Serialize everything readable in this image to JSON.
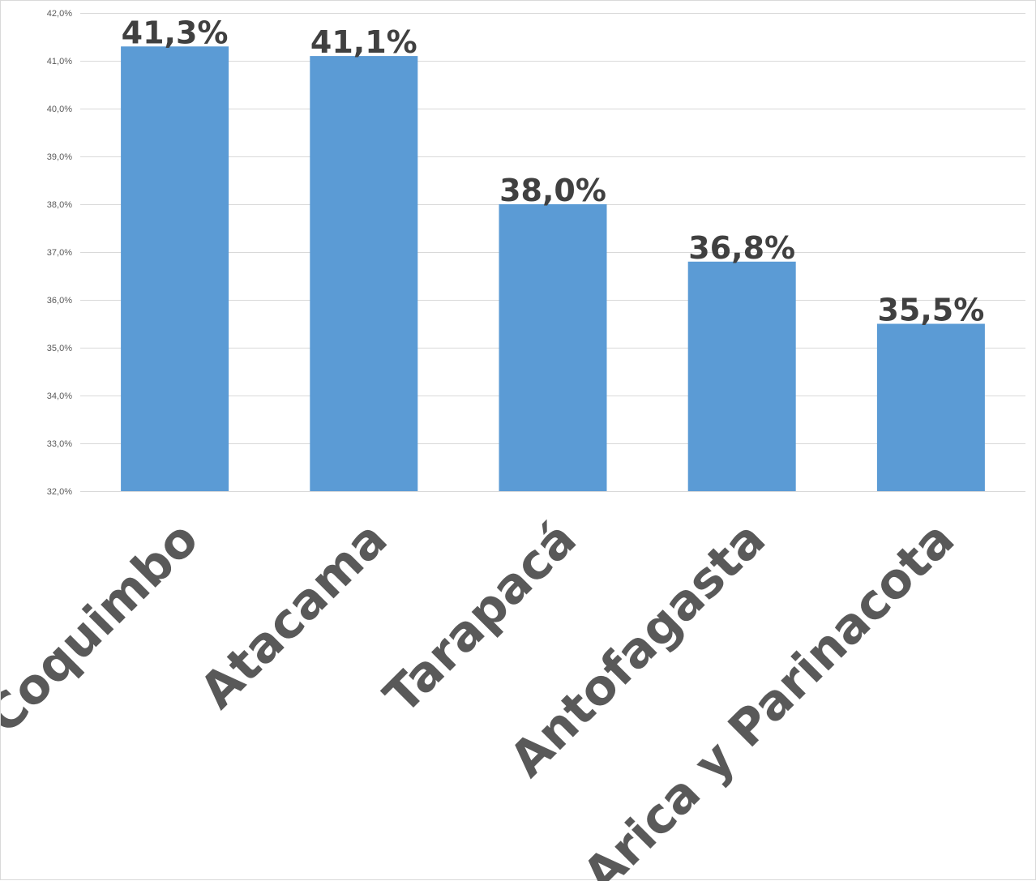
{
  "chart_data": {
    "type": "bar",
    "categories": [
      "Coquimbo",
      "Atacama",
      "Tarapacá",
      "Antofagasta",
      "Arica y Parinacota"
    ],
    "values": [
      41.3,
      41.1,
      38.0,
      36.8,
      35.5
    ],
    "data_labels": [
      "41,3%",
      "41,1%",
      "38,0%",
      "36,8%",
      "35,5%"
    ],
    "ylim": [
      32,
      42
    ],
    "yticks": [
      32,
      33,
      34,
      35,
      36,
      37,
      38,
      39,
      40,
      41,
      42
    ],
    "ytick_labels": [
      "32,0%",
      "33,0%",
      "34,0%",
      "35,0%",
      "36,0%",
      "37,0%",
      "38,0%",
      "39,0%",
      "40,0%",
      "41,0%",
      "42,0%"
    ],
    "grid": true,
    "bar_color": "#5b9bd5",
    "gridline_color": "#d9d9d9",
    "title": "",
    "xlabel": "",
    "ylabel": ""
  }
}
